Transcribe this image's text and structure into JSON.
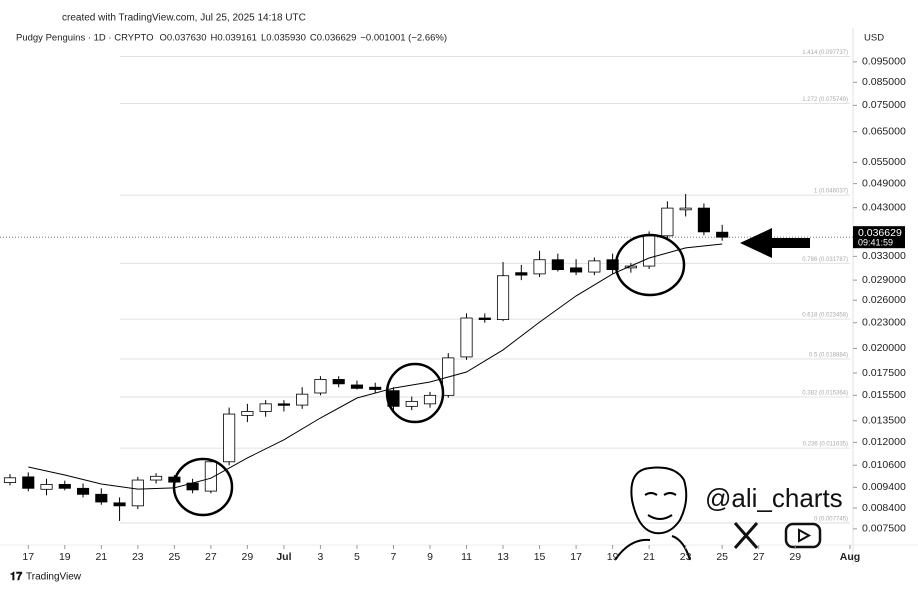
{
  "caption": "created with TradingView.com, Jul 25, 2025 14:18 UTC",
  "brand": "TradingView",
  "watermark": {
    "handle": "@ali_charts"
  },
  "chart_data": {
    "type": "candlestick",
    "symbol": "Pudgy Penguins · 1D · CRYPTO",
    "ohlc_header": [
      "O0.037630",
      "H0.039161",
      "L0.035930",
      "C0.036629",
      "−0.001001 (−2.66%)"
    ],
    "currency": "USD",
    "x": [
      "2025-06-16",
      "2025-06-17",
      "2025-06-18",
      "2025-06-19",
      "2025-06-20",
      "2025-06-21",
      "2025-06-22",
      "2025-06-23",
      "2025-06-24",
      "2025-06-25",
      "2025-06-26",
      "2025-06-27",
      "2025-06-28",
      "2025-06-29",
      "2025-06-30",
      "2025-07-01",
      "2025-07-02",
      "2025-07-03",
      "2025-07-04",
      "2025-07-05",
      "2025-07-06",
      "2025-07-07",
      "2025-07-08",
      "2025-07-09",
      "2025-07-10",
      "2025-07-11",
      "2025-07-12",
      "2025-07-13",
      "2025-07-14",
      "2025-07-15",
      "2025-07-16",
      "2025-07-17",
      "2025-07-18",
      "2025-07-19",
      "2025-07-20",
      "2025-07-21",
      "2025-07-22",
      "2025-07-23",
      "2025-07-24",
      "2025-07-25"
    ],
    "open": [
      0.00965,
      0.00995,
      0.0093,
      0.00955,
      0.00935,
      0.00905,
      0.00864,
      0.0085,
      0.00978,
      0.00994,
      0.00962,
      0.00921,
      0.0108,
      0.0139,
      0.0142,
      0.0148,
      0.0147,
      0.0157,
      0.0169,
      0.0164,
      0.0162,
      0.0159,
      0.0146,
      0.0148,
      0.0155,
      0.0191,
      0.0236,
      0.0234,
      0.0302,
      0.03,
      0.0324,
      0.031,
      0.0303,
      0.0324,
      0.031,
      0.0313,
      0.0369,
      0.0425,
      0.0429,
      0.03763
    ],
    "high": [
      0.0101,
      0.0102,
      0.00985,
      0.00975,
      0.0096,
      0.00935,
      0.0089,
      0.00995,
      0.01015,
      0.01005,
      0.00985,
      0.0109,
      0.0145,
      0.0148,
      0.0151,
      0.0151,
      0.0162,
      0.0172,
      0.0172,
      0.0168,
      0.0166,
      0.0162,
      0.0154,
      0.0158,
      0.0195,
      0.0242,
      0.0242,
      0.032,
      0.0315,
      0.034,
      0.0335,
      0.0325,
      0.0328,
      0.0335,
      0.0318,
      0.0378,
      0.0445,
      0.0463,
      0.044,
      0.039161
    ],
    "low": [
      0.0095,
      0.0092,
      0.009,
      0.00925,
      0.0089,
      0.00855,
      0.00783,
      0.00835,
      0.0096,
      0.00955,
      0.0091,
      0.0091,
      0.0106,
      0.0134,
      0.0138,
      0.0142,
      0.0144,
      0.0155,
      0.0162,
      0.016,
      0.0157,
      0.0143,
      0.0143,
      0.0145,
      0.0153,
      0.0188,
      0.023,
      0.0232,
      0.029,
      0.0295,
      0.0304,
      0.0298,
      0.0298,
      0.03,
      0.0302,
      0.0308,
      0.0362,
      0.041,
      0.037,
      0.03593
    ],
    "close": [
      0.0099,
      0.00935,
      0.00955,
      0.00935,
      0.00905,
      0.00868,
      0.0085,
      0.00978,
      0.00998,
      0.00967,
      0.00927,
      0.0108,
      0.014,
      0.0142,
      0.0148,
      0.0147,
      0.0156,
      0.0169,
      0.0165,
      0.0161,
      0.016,
      0.0146,
      0.015,
      0.0155,
      0.019,
      0.0236,
      0.0234,
      0.0297,
      0.0298,
      0.0324,
      0.0307,
      0.0303,
      0.0322,
      0.0307,
      0.0313,
      0.0369,
      0.0429,
      0.0429,
      0.0377,
      0.036629
    ],
    "up_color": "#ffffff",
    "down_color": "#000000",
    "ma": {
      "x": [
        "2025-06-17",
        "2025-06-19",
        "2025-06-21",
        "2025-06-23",
        "2025-06-25",
        "2025-06-27",
        "2025-06-29",
        "2025-07-01",
        "2025-07-03",
        "2025-07-05",
        "2025-07-07",
        "2025-07-09",
        "2025-07-11",
        "2025-07-13",
        "2025-07-15",
        "2025-07-17",
        "2025-07-19",
        "2025-07-21",
        "2025-07-23",
        "2025-07-25"
      ],
      "values": [
        0.0105,
        0.01005,
        0.00957,
        0.00931,
        0.00937,
        0.00988,
        0.01103,
        0.01217,
        0.0137,
        0.01528,
        0.01612,
        0.01667,
        0.0176,
        0.01984,
        0.02308,
        0.02662,
        0.03,
        0.03271,
        0.03456,
        0.03529
      ],
      "color": "#000000"
    },
    "log_scale": true,
    "ylim": [
      0.00687,
      0.107
    ],
    "yticks": [
      {
        "value": 0.095,
        "label": "0.095000"
      },
      {
        "value": 0.085,
        "label": "0.085000"
      },
      {
        "value": 0.075,
        "label": "0.075000"
      },
      {
        "value": 0.065,
        "label": "0.065000"
      },
      {
        "value": 0.055,
        "label": "0.055000"
      },
      {
        "value": 0.049,
        "label": "0.049000"
      },
      {
        "value": 0.043,
        "label": "0.043000"
      },
      {
        "value": 0.033,
        "label": "0.033000"
      },
      {
        "value": 0.029,
        "label": "0.029000"
      },
      {
        "value": 0.026,
        "label": "0.026000"
      },
      {
        "value": 0.023,
        "label": "0.023000"
      },
      {
        "value": 0.02,
        "label": "0.020000"
      },
      {
        "value": 0.0175,
        "label": "0.017500"
      },
      {
        "value": 0.0155,
        "label": "0.015500"
      },
      {
        "value": 0.0135,
        "label": "0.013500"
      },
      {
        "value": 0.012,
        "label": "0.012000"
      },
      {
        "value": 0.0106,
        "label": "0.010600"
      },
      {
        "value": 0.0094,
        "label": "0.009400"
      },
      {
        "value": 0.0084,
        "label": "0.008400"
      },
      {
        "value": 0.0075,
        "label": "0.007500"
      }
    ],
    "xlim": [
      "2025-06-16",
      "2025-08-01"
    ],
    "xticks": [
      {
        "value": "2025-06-17",
        "label": "17"
      },
      {
        "value": "2025-06-19",
        "label": "19"
      },
      {
        "value": "2025-06-21",
        "label": "21"
      },
      {
        "value": "2025-06-23",
        "label": "23"
      },
      {
        "value": "2025-06-25",
        "label": "25"
      },
      {
        "value": "2025-06-27",
        "label": "27"
      },
      {
        "value": "2025-06-29",
        "label": "29"
      },
      {
        "value": "2025-07-01",
        "label": "Jul"
      },
      {
        "value": "2025-07-03",
        "label": "3"
      },
      {
        "value": "2025-07-05",
        "label": "5"
      },
      {
        "value": "2025-07-07",
        "label": "7"
      },
      {
        "value": "2025-07-09",
        "label": "9"
      },
      {
        "value": "2025-07-11",
        "label": "11"
      },
      {
        "value": "2025-07-13",
        "label": "13"
      },
      {
        "value": "2025-07-15",
        "label": "15"
      },
      {
        "value": "2025-07-17",
        "label": "17"
      },
      {
        "value": "2025-07-19",
        "label": "19"
      },
      {
        "value": "2025-07-21",
        "label": "21"
      },
      {
        "value": "2025-07-23",
        "label": "23"
      },
      {
        "value": "2025-07-25",
        "label": "25"
      },
      {
        "value": "2025-07-27",
        "label": "27"
      },
      {
        "value": "2025-07-29",
        "label": "29"
      },
      {
        "value": "2025-08-01",
        "label": "Aug"
      }
    ],
    "fib_levels": [
      {
        "label": "1.414 (0.097737)",
        "value": 0.097737
      },
      {
        "label": "1.272 (0.075749)",
        "value": 0.075749
      },
      {
        "label": "1 (0.046037)",
        "value": 0.046037
      },
      {
        "label": "0.786 (0.031787)",
        "value": 0.031787
      },
      {
        "label": "0.618 (0.023458)",
        "value": 0.023458
      },
      {
        "label": "0.5 (0.018884)",
        "value": 0.018884
      },
      {
        "label": "0.382 (0.015364)",
        "value": 0.015364
      },
      {
        "label": "0.236 (0.011635)",
        "value": 0.011635
      },
      {
        "label": "0 (0.007745)",
        "value": 0.007745
      }
    ],
    "current_price": {
      "value": 0.036629,
      "label": "0.036629"
    },
    "countdown": "09:41:59"
  }
}
